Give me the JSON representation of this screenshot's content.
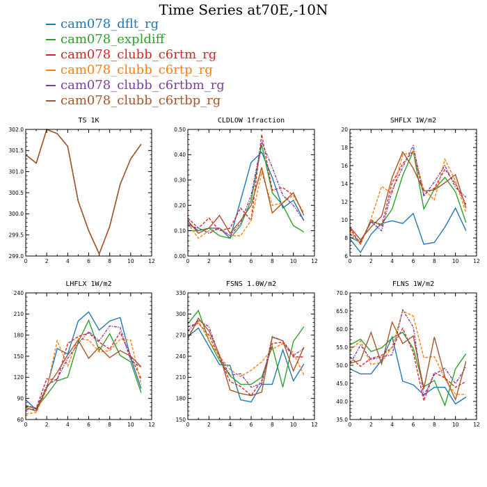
{
  "title": "Time Series at70E,-10N",
  "legend": [
    {
      "name": "cam078_dflt_rg",
      "color": "#1f77b4"
    },
    {
      "name": "cam078_expldiff",
      "color": "#2ca02c"
    },
    {
      "name": "cam078_clubb_c6rtm_rg",
      "color": "#d62728"
    },
    {
      "name": "cam078_clubb_c6rtp_rg",
      "color": "#ff7f0e"
    },
    {
      "name": "cam078_clubb_c6rtbm_rg",
      "color": "#7b3fa3"
    },
    {
      "name": "cam078_clubb_c6rtbp_rg",
      "color": "#a65628"
    }
  ],
  "chart_data": [
    {
      "type": "line",
      "title": "TS   1K",
      "x": [
        0,
        1,
        2,
        3,
        4,
        5,
        6,
        7,
        8,
        9,
        10,
        11
      ],
      "xlim": [
        0,
        12
      ],
      "xticks": [
        0,
        2,
        4,
        6,
        8,
        10,
        12
      ],
      "ylim": [
        299.0,
        302.0
      ],
      "yticks": [
        299.0,
        299.5,
        300.0,
        300.5,
        301.0,
        301.5,
        302.0
      ],
      "ytick_labels": [
        "299.0",
        "299.5",
        "300.0",
        "300.5",
        "301.0",
        "301.5",
        "302.0"
      ],
      "series": [
        {
          "color": "#1f77b4",
          "values": [
            301.4,
            301.2,
            302.0,
            301.9,
            301.6,
            300.3,
            299.6,
            299.05,
            299.7,
            300.7,
            301.3,
            301.65
          ]
        },
        {
          "color": "#2ca02c",
          "values": [
            301.4,
            301.2,
            302.0,
            301.9,
            301.6,
            300.3,
            299.6,
            299.05,
            299.7,
            300.7,
            301.3,
            301.65
          ]
        },
        {
          "color": "#d62728",
          "values": [
            301.4,
            301.2,
            302.0,
            301.9,
            301.6,
            300.3,
            299.6,
            299.05,
            299.7,
            300.7,
            301.3,
            301.65
          ]
        },
        {
          "color": "#ff7f0e",
          "values": [
            301.4,
            301.2,
            302.0,
            301.9,
            301.6,
            300.3,
            299.6,
            299.05,
            299.7,
            300.7,
            301.3,
            301.65
          ]
        },
        {
          "color": "#7b3fa3",
          "values": [
            301.4,
            301.2,
            302.0,
            301.9,
            301.6,
            300.3,
            299.6,
            299.05,
            299.7,
            300.7,
            301.3,
            301.65
          ]
        },
        {
          "color": "#a65628",
          "values": [
            301.4,
            301.2,
            302.0,
            301.9,
            301.6,
            300.3,
            299.6,
            299.05,
            299.7,
            300.7,
            301.3,
            301.65
          ]
        }
      ]
    },
    {
      "type": "line",
      "title": "CLDLOW   1fraction",
      "x": [
        0,
        1,
        2,
        3,
        4,
        5,
        6,
        7,
        8,
        9,
        10,
        11
      ],
      "xlim": [
        0,
        12
      ],
      "xticks": [
        0,
        2,
        4,
        6,
        8,
        10,
        12
      ],
      "ylim": [
        0.0,
        0.5
      ],
      "yticks": [
        0.0,
        0.1,
        0.2,
        0.3,
        0.4,
        0.5
      ],
      "ytick_labels": [
        "0.00",
        "0.10",
        "0.20",
        "0.30",
        "0.40",
        "0.50"
      ],
      "series": [
        {
          "color": "#1f77b4",
          "values": [
            0.13,
            0.1,
            0.11,
            0.11,
            0.07,
            0.22,
            0.37,
            0.41,
            0.31,
            0.19,
            0.22,
            0.14
          ]
        },
        {
          "color": "#2ca02c",
          "values": [
            0.1,
            0.1,
            0.11,
            0.08,
            0.07,
            0.12,
            0.22,
            0.44,
            0.25,
            0.2,
            0.12,
            0.095
          ]
        },
        {
          "color": "#d62728",
          "values": [
            0.15,
            0.11,
            0.15,
            0.1,
            0.11,
            0.19,
            0.14,
            0.48,
            0.26,
            0.27,
            0.24,
            0.17
          ]
        },
        {
          "color": "#ff7f0e",
          "values": [
            0.13,
            0.07,
            0.1,
            0.11,
            0.08,
            0.08,
            0.14,
            0.33,
            0.2,
            0.21,
            0.24,
            0.17
          ]
        },
        {
          "color": "#7b3fa3",
          "values": [
            0.12,
            0.11,
            0.09,
            0.11,
            0.08,
            0.13,
            0.24,
            0.45,
            0.35,
            0.24,
            0.2,
            0.14
          ]
        },
        {
          "color": "#a65628",
          "values": [
            0.14,
            0.09,
            0.11,
            0.16,
            0.09,
            0.14,
            0.2,
            0.35,
            0.17,
            0.21,
            0.25,
            0.16
          ]
        }
      ]
    },
    {
      "type": "line",
      "title": "SHFLX   1W/m2",
      "x": [
        0,
        1,
        2,
        3,
        4,
        5,
        6,
        7,
        8,
        9,
        10,
        11
      ],
      "xlim": [
        0,
        12
      ],
      "xticks": [
        0,
        2,
        4,
        6,
        8,
        10,
        12
      ],
      "ylim": [
        6,
        20
      ],
      "yticks": [
        6,
        8,
        10,
        12,
        14,
        16,
        18,
        20
      ],
      "ytick_labels": [
        "6",
        "8",
        "10",
        "12",
        "14",
        "16",
        "18",
        "20"
      ],
      "series": [
        {
          "color": "#1f77b4",
          "values": [
            7.9,
            6.4,
            8.4,
            9.6,
            9.9,
            9.6,
            10.7,
            7.3,
            7.5,
            9.2,
            11.3,
            8.8
          ]
        },
        {
          "color": "#2ca02c",
          "values": [
            8.1,
            7.5,
            9.8,
            9.5,
            11.2,
            14.9,
            17.6,
            11.2,
            13.4,
            14.7,
            13.1,
            9.7
          ]
        },
        {
          "color": "#d62728",
          "values": [
            9.1,
            7.3,
            10.0,
            9.3,
            14.1,
            16.2,
            17.6,
            12.8,
            13.5,
            15.6,
            14.0,
            11.7
          ]
        },
        {
          "color": "#ff7f0e",
          "values": [
            8.8,
            7.3,
            10.1,
            13.7,
            12.9,
            17.2,
            17.5,
            13.4,
            12.2,
            16.7,
            14.3,
            10.8
          ]
        },
        {
          "color": "#7b3fa3",
          "values": [
            8.4,
            7.6,
            9.8,
            8.8,
            13.3,
            15.8,
            18.2,
            12.6,
            14.2,
            16.0,
            13.6,
            12.5
          ]
        },
        {
          "color": "#a65628",
          "values": [
            9.2,
            7.8,
            9.2,
            10.4,
            14.7,
            17.5,
            15.7,
            13.2,
            13.3,
            14.1,
            15.0,
            11.3
          ]
        }
      ]
    },
    {
      "type": "line",
      "title": "LHFLX   1W/m2",
      "x": [
        0,
        1,
        2,
        3,
        4,
        5,
        6,
        7,
        8,
        9,
        10,
        11
      ],
      "xlim": [
        0,
        12
      ],
      "xticks": [
        0,
        2,
        4,
        6,
        8,
        10,
        12
      ],
      "ylim": [
        60,
        240
      ],
      "yticks": [
        60,
        90,
        120,
        150,
        180,
        210,
        240
      ],
      "ytick_labels": [
        "60",
        "90",
        "120",
        "150",
        "180",
        "210",
        "240"
      ],
      "series": [
        {
          "color": "#1f77b4",
          "values": [
            88,
            74,
            105,
            161,
            153,
            200,
            213,
            187,
            200,
            205,
            148,
            104
          ]
        },
        {
          "color": "#2ca02c",
          "values": [
            79,
            76,
            95,
            115,
            120,
            170,
            201,
            158,
            182,
            151,
            142,
            98
          ]
        },
        {
          "color": "#d62728",
          "values": [
            80,
            76,
            118,
            116,
            168,
            178,
            183,
            170,
            160,
            184,
            150,
            118
          ]
        },
        {
          "color": "#ff7f0e",
          "values": [
            68,
            70,
            103,
            172,
            136,
            175,
            173,
            156,
            158,
            174,
            173,
            110
          ]
        },
        {
          "color": "#7b3fa3",
          "values": [
            74,
            75,
            108,
            118,
            147,
            168,
            185,
            172,
            193,
            191,
            144,
            134
          ]
        },
        {
          "color": "#a65628",
          "values": [
            77,
            72,
            105,
            127,
            152,
            173,
            147,
            163,
            148,
            158,
            150,
            135
          ]
        }
      ]
    },
    {
      "type": "line",
      "title": "FSNS   1.0W/m2",
      "x": [
        0,
        1,
        2,
        3,
        4,
        5,
        6,
        7,
        8,
        9,
        10,
        11
      ],
      "xlim": [
        0,
        12
      ],
      "xticks": [
        0,
        2,
        4,
        6,
        8,
        10,
        12
      ],
      "ylim": [
        150,
        330
      ],
      "yticks": [
        150,
        180,
        210,
        240,
        270,
        300,
        330
      ],
      "ytick_labels": [
        "150",
        "180",
        "210",
        "240",
        "270",
        "300",
        "330"
      ],
      "series": [
        {
          "color": "#1f77b4",
          "values": [
            268,
            280,
            254,
            228,
            227,
            178,
            175,
            200,
            200,
            249,
            205,
            229
          ]
        },
        {
          "color": "#2ca02c",
          "values": [
            286,
            305,
            262,
            234,
            212,
            200,
            200,
            210,
            254,
            196,
            261,
            282
          ]
        },
        {
          "color": "#d62728",
          "values": [
            282,
            287,
            270,
            238,
            204,
            197,
            184,
            205,
            258,
            260,
            239,
            239
          ]
        },
        {
          "color": "#ff7f0e",
          "values": [
            268,
            290,
            262,
            240,
            221,
            211,
            220,
            232,
            250,
            258,
            245,
            213
          ]
        },
        {
          "color": "#7b3fa3",
          "values": [
            276,
            291,
            282,
            240,
            213,
            215,
            196,
            201,
            268,
            262,
            241,
            251
          ]
        },
        {
          "color": "#a65628",
          "values": [
            265,
            294,
            276,
            242,
            192,
            187,
            184,
            189,
            267,
            262,
            219,
            253
          ]
        }
      ]
    },
    {
      "type": "line",
      "title": "FLNS   1W/m2",
      "x": [
        0,
        1,
        2,
        3,
        4,
        5,
        6,
        7,
        8,
        9,
        10,
        11
      ],
      "xlim": [
        0,
        12
      ],
      "xticks": [
        0,
        2,
        4,
        6,
        8,
        10,
        12
      ],
      "ylim": [
        35.0,
        70.0
      ],
      "yticks": [
        35,
        40,
        45,
        50,
        55,
        60,
        65,
        70
      ],
      "ytick_labels": [
        "35.0",
        "40.0",
        "45.0",
        "50.0",
        "55.0",
        "60.0",
        "65.0",
        "70.0"
      ],
      "series": [
        {
          "color": "#1f77b4",
          "values": [
            49.0,
            47.6,
            47.6,
            51.4,
            57.8,
            45.6,
            44.6,
            41.8,
            43.9,
            43.9,
            39.3,
            41.2
          ]
        },
        {
          "color": "#2ca02c",
          "values": [
            55.6,
            57.2,
            53.8,
            54.8,
            57.5,
            59.1,
            54.7,
            44.0,
            45.8,
            38.9,
            49.0,
            53.2
          ]
        },
        {
          "color": "#d62728",
          "values": [
            52.3,
            49.7,
            51.9,
            52.7,
            54.9,
            60.2,
            53.6,
            40.2,
            48.0,
            46.5,
            43.9,
            45.5
          ]
        },
        {
          "color": "#ff7f0e",
          "values": [
            54.1,
            56.7,
            50.2,
            50.8,
            55.1,
            65.0,
            63.6,
            52.1,
            52.4,
            46.3,
            42.0,
            41.9
          ]
        },
        {
          "color": "#7b3fa3",
          "values": [
            50.3,
            55.6,
            51.6,
            52.3,
            52.9,
            65.3,
            60.6,
            41.6,
            47.4,
            49.2,
            44.9,
            49.6
          ]
        },
        {
          "color": "#a65628",
          "values": [
            50.5,
            51.4,
            59.1,
            50.4,
            61.9,
            56.0,
            58.1,
            43.5,
            57.8,
            46.8,
            40.5,
            51.1
          ]
        }
      ]
    }
  ]
}
